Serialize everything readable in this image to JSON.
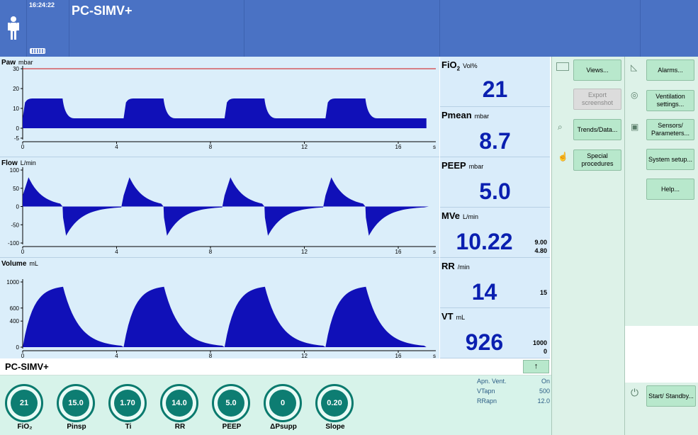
{
  "header": {
    "time": "16:24:22",
    "mode": "PC-SIMV+",
    "patient_icon": "person-icon",
    "battery_icon": "battery-icon"
  },
  "waves": {
    "paw": {
      "name": "Paw",
      "unit": "mbar",
      "yticks": [
        "30",
        "20",
        "10",
        "0",
        "-5"
      ]
    },
    "flow": {
      "name": "Flow",
      "unit": "L/min",
      "yticks": [
        "100",
        "50",
        "0",
        "-50",
        "-100"
      ]
    },
    "volume": {
      "name": "Volume",
      "unit": "mL",
      "yticks": [
        "1000",
        "600",
        "400",
        "0"
      ]
    },
    "xticks": [
      "0",
      "4",
      "8",
      "12",
      "16",
      "s"
    ]
  },
  "chart_data": [
    {
      "type": "line",
      "title": "Paw",
      "ylabel": "mbar",
      "xlabel": "s",
      "xlim": [
        0,
        17.6
      ],
      "ylim": [
        -5,
        30
      ],
      "limit_line": 30,
      "breaths": [
        0,
        4.3,
        8.6,
        12.9
      ],
      "plateau": 15,
      "baseline": 5
    },
    {
      "type": "line",
      "title": "Flow",
      "ylabel": "L/min",
      "xlabel": "s",
      "xlim": [
        0,
        17.6
      ],
      "ylim": [
        -100,
        100
      ],
      "insp_peak": 80,
      "exp_peak": -80
    },
    {
      "type": "line",
      "title": "Volume",
      "ylabel": "mL",
      "xlabel": "s",
      "xlim": [
        0,
        17.6
      ],
      "ylim": [
        0,
        1000
      ],
      "peak": 926
    }
  ],
  "params": [
    {
      "name": "FiO",
      "sub": "2",
      "unit": "Vol%",
      "value": "21",
      "hi": "",
      "lo": ""
    },
    {
      "name": "Pmean",
      "sub": "",
      "unit": "mbar",
      "value": "8.7",
      "hi": "",
      "lo": ""
    },
    {
      "name": "PEEP",
      "sub": "",
      "unit": "mbar",
      "value": "5.0",
      "hi": "",
      "lo": ""
    },
    {
      "name": "MVe",
      "sub": "",
      "unit": "L/min",
      "value": "10.22",
      "hi": "9.00",
      "lo": "4.80"
    },
    {
      "name": "RR",
      "sub": "",
      "unit": "/min",
      "value": "14",
      "hi": "15",
      "lo": ""
    },
    {
      "name": "VT",
      "sub": "",
      "unit": "mL",
      "value": "926",
      "hi": "1000",
      "lo": "0"
    }
  ],
  "buttons_left": {
    "views": "Views...",
    "export": "Export screenshot",
    "trends": "Trends/Data...",
    "special": "Special procedures"
  },
  "buttons_right": {
    "alarms": "Alarms...",
    "ventilation": "Ventilation settings...",
    "sensors": "Sensors/ Parameters...",
    "system": "System setup...",
    "help": "Help...",
    "standby": "Start/ Standby..."
  },
  "bottom": {
    "mode": "PC-SIMV+",
    "arrow": "↑",
    "apnea": [
      {
        "label": "Apn. Vent.",
        "value": "On"
      },
      {
        "label": "VTapn",
        "value": "500"
      },
      {
        "label": "RRapn",
        "value": "12.0"
      }
    ],
    "knobs": [
      {
        "label": "FiO₂",
        "value": "21"
      },
      {
        "label": "Pinsp",
        "value": "15.0"
      },
      {
        "label": "Ti",
        "value": "1.70"
      },
      {
        "label": "RR",
        "value": "14.0"
      },
      {
        "label": "PEEP",
        "value": "5.0"
      },
      {
        "label": "ΔPsupp",
        "value": "0"
      },
      {
        "label": "Slope",
        "value": "0.20"
      }
    ]
  }
}
